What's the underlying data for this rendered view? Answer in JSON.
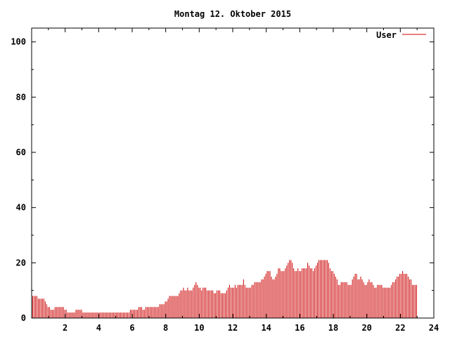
{
  "chart_data": {
    "type": "bar",
    "title": "Montag 12. Oktober 2015",
    "xlabel": "",
    "ylabel": "",
    "xlim": [
      0,
      24
    ],
    "ylim": [
      0,
      105
    ],
    "xticks": [
      2,
      4,
      6,
      8,
      10,
      12,
      14,
      16,
      18,
      20,
      22,
      24
    ],
    "yticks": [
      0,
      20,
      40,
      60,
      80,
      100
    ],
    "xtick_labels": [
      "2",
      "4",
      "6",
      "8",
      "10",
      "12",
      "14",
      "16",
      "18",
      "20",
      "22",
      "24"
    ],
    "ytick_labels": [
      "0",
      "20",
      "40",
      "60",
      "80",
      "100"
    ],
    "grid": false,
    "legend_position": "top-right",
    "bar_interval_hours": 0.0833,
    "series": [
      {
        "name": "User",
        "color": "#cc0000",
        "values": [
          8,
          8,
          8,
          8,
          7,
          7,
          7,
          7,
          7,
          6,
          5,
          4,
          4,
          3,
          3,
          3,
          4,
          4,
          4,
          4,
          4,
          4,
          4,
          3,
          3,
          2,
          2,
          2,
          2,
          2,
          2,
          3,
          3,
          3,
          3,
          3,
          2,
          2,
          2,
          2,
          2,
          2,
          2,
          2,
          2,
          2,
          2,
          2,
          2,
          2,
          2,
          2,
          2,
          2,
          2,
          2,
          2,
          2,
          2,
          2,
          2,
          2,
          2,
          2,
          2,
          2,
          2,
          2,
          2,
          2,
          3,
          3,
          3,
          3,
          3,
          3,
          4,
          4,
          4,
          3,
          3,
          4,
          4,
          4,
          4,
          4,
          4,
          4,
          4,
          4,
          4,
          5,
          5,
          5,
          5,
          6,
          6,
          7,
          8,
          8,
          8,
          8,
          8,
          8,
          8,
          9,
          10,
          10,
          11,
          10,
          10,
          11,
          10,
          10,
          10,
          11,
          12,
          13,
          12,
          11,
          11,
          10,
          11,
          11,
          11,
          10,
          10,
          10,
          10,
          10,
          9,
          9,
          10,
          10,
          10,
          9,
          9,
          9,
          9,
          10,
          11,
          12,
          11,
          11,
          11,
          12,
          11,
          12,
          12,
          12,
          12,
          14,
          12,
          11,
          11,
          11,
          11,
          12,
          12,
          13,
          13,
          13,
          13,
          13,
          14,
          14,
          15,
          16,
          17,
          17,
          17,
          15,
          14,
          14,
          15,
          16,
          18,
          18,
          17,
          17,
          17,
          18,
          19,
          20,
          21,
          21,
          20,
          18,
          17,
          17,
          18,
          17,
          17,
          18,
          18,
          18,
          18,
          20,
          19,
          18,
          18,
          17,
          18,
          19,
          20,
          21,
          21,
          21,
          21,
          21,
          21,
          21,
          20,
          18,
          17,
          17,
          16,
          15,
          14,
          12,
          12,
          13,
          13,
          13,
          13,
          13,
          12,
          12,
          12,
          14,
          15,
          16,
          16,
          14,
          14,
          15,
          14,
          13,
          12,
          12,
          13,
          14,
          13,
          13,
          12,
          11,
          11,
          12,
          12,
          12,
          12,
          11,
          11,
          11,
          11,
          11,
          11,
          12,
          13,
          13,
          14,
          15,
          15,
          16,
          16,
          17,
          16,
          16,
          16,
          15,
          14,
          14,
          12,
          12,
          12,
          12
        ]
      }
    ]
  }
}
